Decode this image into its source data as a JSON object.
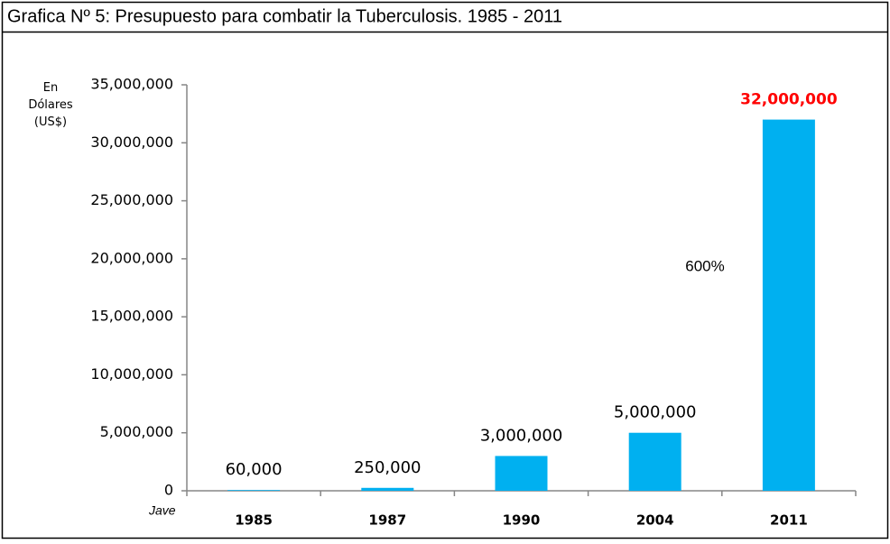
{
  "chart_data": {
    "type": "bar",
    "title": "Grafica Nº 5: Presupuesto para combatir la Tuberculosis. 1985 - 2011",
    "y_label": "En Dólares (US$)",
    "note": "Jave",
    "annotations": [
      "600%"
    ],
    "categories": [
      "1985",
      "1987",
      "1990",
      "2004",
      "2011"
    ],
    "values": [
      60000,
      250000,
      3000000,
      5000000,
      32000000
    ],
    "value_labels": [
      "60,000",
      "250,000",
      "3,000,000",
      "5,000,000",
      "32,000,000"
    ],
    "value_label_colors": [
      "#000000",
      "#000000",
      "#000000",
      "#000000",
      "#ff0000"
    ],
    "color": "#00b0f0",
    "ylim": [
      0,
      35000000
    ],
    "yticks": [
      0,
      {
        "value": 5000000,
        "label": "5,000,000"
      },
      {
        "value": 10000000,
        "label": "10,000,000"
      },
      {
        "value": 15000000,
        "label": "15,000,000"
      },
      {
        "value": 20000000,
        "label": "20,000,000"
      },
      {
        "value": 25000000,
        "label": "25,000,000"
      },
      {
        "value": 30000000,
        "label": "30,000,000"
      },
      {
        "value": 35000000,
        "label": "35,000,000"
      }
    ],
    "grid": false
  }
}
